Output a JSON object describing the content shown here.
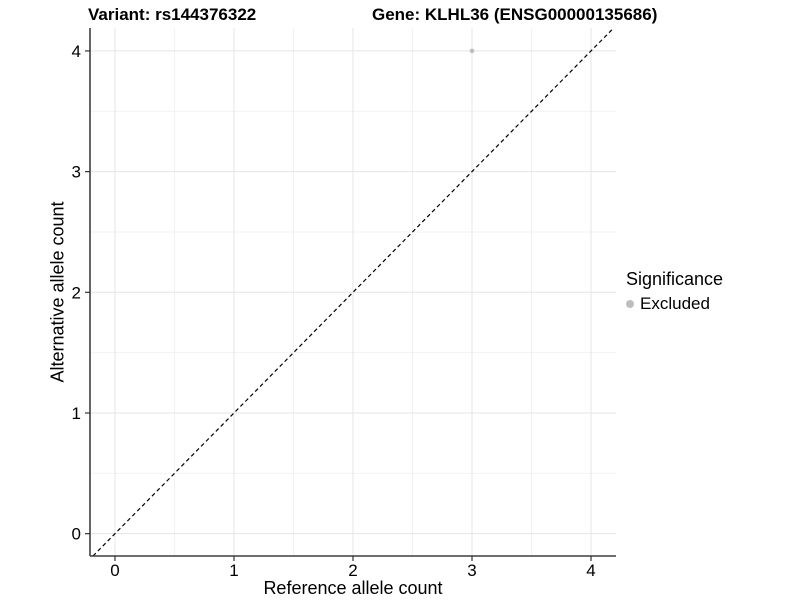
{
  "header": {
    "variant_title": "Variant: rs144376322",
    "gene_title": "Gene: KLHL36 (ENSG00000135686)"
  },
  "chart_data": {
    "type": "scatter",
    "title": "Variant: rs144376322 / Gene: KLHL36 (ENSG00000135686)",
    "xlabel": "Reference allele count",
    "ylabel": "Alternative allele count",
    "xticks": [
      0,
      1,
      2,
      3,
      4
    ],
    "yticks": [
      0,
      1,
      2,
      3,
      4
    ],
    "x_minor": [
      0.5,
      1.5,
      2.5,
      3.5
    ],
    "y_minor": [
      0.5,
      1.5,
      2.5,
      3.5
    ],
    "xlim": [
      -0.21,
      4.21
    ],
    "ylim": [
      -0.185,
      4.19
    ],
    "grid": "major+minor",
    "reference_line": {
      "type": "identity",
      "style": "dashed",
      "color": "#000000"
    },
    "series": [
      {
        "name": "Excluded",
        "color": "#bebebe",
        "points": [
          [
            3,
            4
          ]
        ]
      }
    ],
    "legend": {
      "position": "right",
      "title": "Significance",
      "items": [
        {
          "label": "Excluded",
          "color": "#bebebe"
        }
      ]
    },
    "colors": {
      "background": "#ffffff",
      "grid_major": "#e5e5e5",
      "grid_minor": "#f2f2f2",
      "axis_line": "#3f3f3f",
      "tick": "#333333",
      "text": "#000000"
    }
  }
}
